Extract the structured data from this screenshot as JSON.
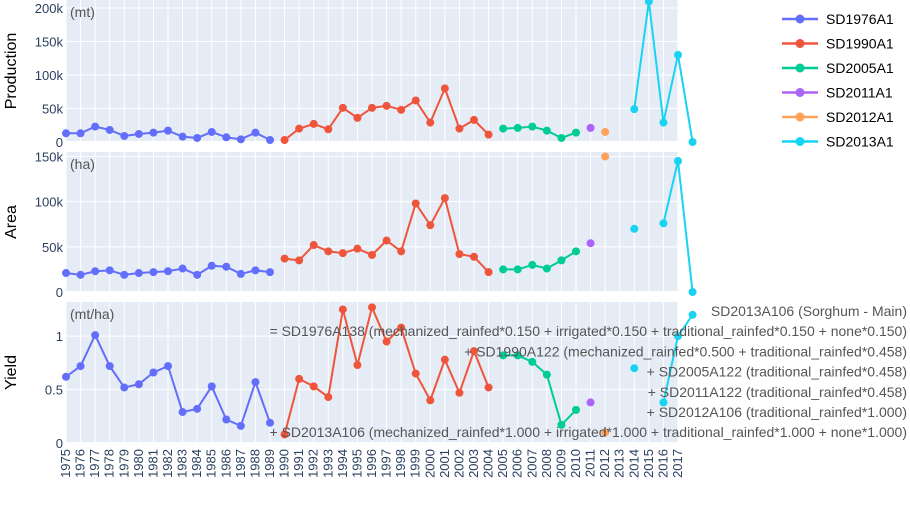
{
  "chart_data": {
    "type": "line",
    "x": [
      1975,
      1976,
      1977,
      1978,
      1979,
      1980,
      1981,
      1982,
      1983,
      1984,
      1985,
      1986,
      1987,
      1988,
      1989,
      1990,
      1991,
      1992,
      1993,
      1994,
      1995,
      1996,
      1997,
      1998,
      1999,
      2000,
      2001,
      2002,
      2003,
      2004,
      2005,
      2006,
      2007,
      2008,
      2009,
      2010,
      2011,
      2012,
      2013,
      2014,
      2015,
      2016,
      2017
    ],
    "x_tick_labels": [
      "1975",
      "1976",
      "1977",
      "1978",
      "1979",
      "1980",
      "1981",
      "1982",
      "1983",
      "1984",
      "1985",
      "1986",
      "1987",
      "1988",
      "1989",
      "1990",
      "1991",
      "1992",
      "1993",
      "1994",
      "1995",
      "1996",
      "1997",
      "1998",
      "1999",
      "2000",
      "2001",
      "2002",
      "2003",
      "2004",
      "2005",
      "2006",
      "2007",
      "2008",
      "2009",
      "2010",
      "2011",
      "2012",
      "2013",
      "2014",
      "2015",
      "2016",
      "2017"
    ],
    "legend_position": "top-right",
    "grid": true,
    "series": [
      {
        "name": "SD1976A1",
        "color": "#636efa",
        "start": 1975,
        "production": [
          13000,
          13000,
          23000,
          18000,
          9000,
          12000,
          14000,
          17000,
          8000,
          6000,
          15000,
          7000,
          4000,
          14000,
          3000
        ],
        "area": [
          21000,
          19000,
          23000,
          24000,
          19000,
          21000,
          22000,
          23000,
          26000,
          19000,
          29000,
          28000,
          20000,
          24000,
          22000
        ],
        "yield": [
          0.62,
          0.72,
          1.01,
          0.72,
          0.52,
          0.55,
          0.66,
          0.72,
          0.29,
          0.32,
          0.53,
          0.22,
          0.16,
          0.57,
          0.19
        ]
      },
      {
        "name": "SD1990A1",
        "color": "#ef553b",
        "start": 1990,
        "production": [
          3000,
          20000,
          27000,
          19000,
          51000,
          36000,
          51000,
          54000,
          48000,
          62000,
          29000,
          80000,
          20000,
          33000,
          11000
        ],
        "area": [
          37000,
          35000,
          52000,
          45000,
          43000,
          48000,
          41000,
          57000,
          45000,
          98000,
          74000,
          104000,
          42000,
          39000,
          22000
        ],
        "yield": [
          0.08,
          0.6,
          0.53,
          0.43,
          1.25,
          0.73,
          1.27,
          0.95,
          1.08,
          0.65,
          0.4,
          0.78,
          0.47,
          0.86,
          0.52
        ]
      },
      {
        "name": "SD2005A1",
        "color": "#00cc96",
        "start": 2005,
        "production": [
          20000,
          21000,
          23000,
          17000,
          6000,
          14000
        ],
        "area": [
          25000,
          25000,
          30000,
          26000,
          35000,
          45000
        ],
        "yield": [
          0.82,
          0.82,
          0.76,
          0.64,
          0.17,
          0.31
        ]
      },
      {
        "name": "SD2011A1",
        "color": "#ab63fa",
        "start": 2011,
        "production": [
          21000
        ],
        "area": [
          54000
        ],
        "yield": [
          0.38
        ]
      },
      {
        "name": "SD2012A1",
        "color": "#ffa15a",
        "start": 2012,
        "production": [
          15000
        ],
        "area": [
          150000
        ],
        "yield": [
          0.1
        ]
      },
      {
        "name": "SD2013A1",
        "color": "#19d3f3",
        "start": 2013,
        "production": [
          null,
          49000,
          210000,
          29000,
          130000,
          0
        ],
        "area": [
          null,
          70000,
          null,
          76000,
          145000,
          0
        ],
        "yield": [
          null,
          0.7,
          null,
          0.38,
          1.0,
          1.2
        ]
      }
    ],
    "panels": [
      {
        "key": "production",
        "ylabel": "Production",
        "unit": "(mt)",
        "ymin": 0,
        "ymax": 212000,
        "ticks": [
          0,
          50000,
          100000,
          150000,
          200000
        ],
        "tick_labels": [
          "0",
          "50k",
          "100k",
          "150k",
          "200k"
        ]
      },
      {
        "key": "area",
        "ylabel": "Area",
        "unit": "(ha)",
        "ymin": 0,
        "ymax": 155000,
        "ticks": [
          0,
          50000,
          100000,
          150000
        ],
        "tick_labels": [
          "0",
          "50k",
          "100k",
          "150k"
        ]
      },
      {
        "key": "yield",
        "ylabel": "Yield",
        "unit": "(mt/ha)",
        "ymin": 0,
        "ymax": 1.32,
        "ticks": [
          0,
          0.5,
          1
        ],
        "tick_labels": [
          "0",
          "0.5",
          "1"
        ]
      }
    ],
    "annotation_lines": [
      "SD2013A106 (Sorghum - Main)",
      "= SD1976A138 (mechanized_rainfed*0.150 + irrigated*0.150 + traditional_rainfed*0.150 + none*0.150)",
      "+ SD1990A122 (mechanized_rainfed*0.500 + traditional_rainfed*0.458)",
      "+ SD2005A122 (traditional_rainfed*0.458)",
      "+ SD2011A122 (traditional_rainfed*0.458)",
      "+ SD2012A106 (traditional_rainfed*1.000)",
      "+ SD2013A106 (mechanized_rainfed*1.000 + irrigated*1.000 + traditional_rainfed*1.000 + none*1.000)"
    ]
  }
}
